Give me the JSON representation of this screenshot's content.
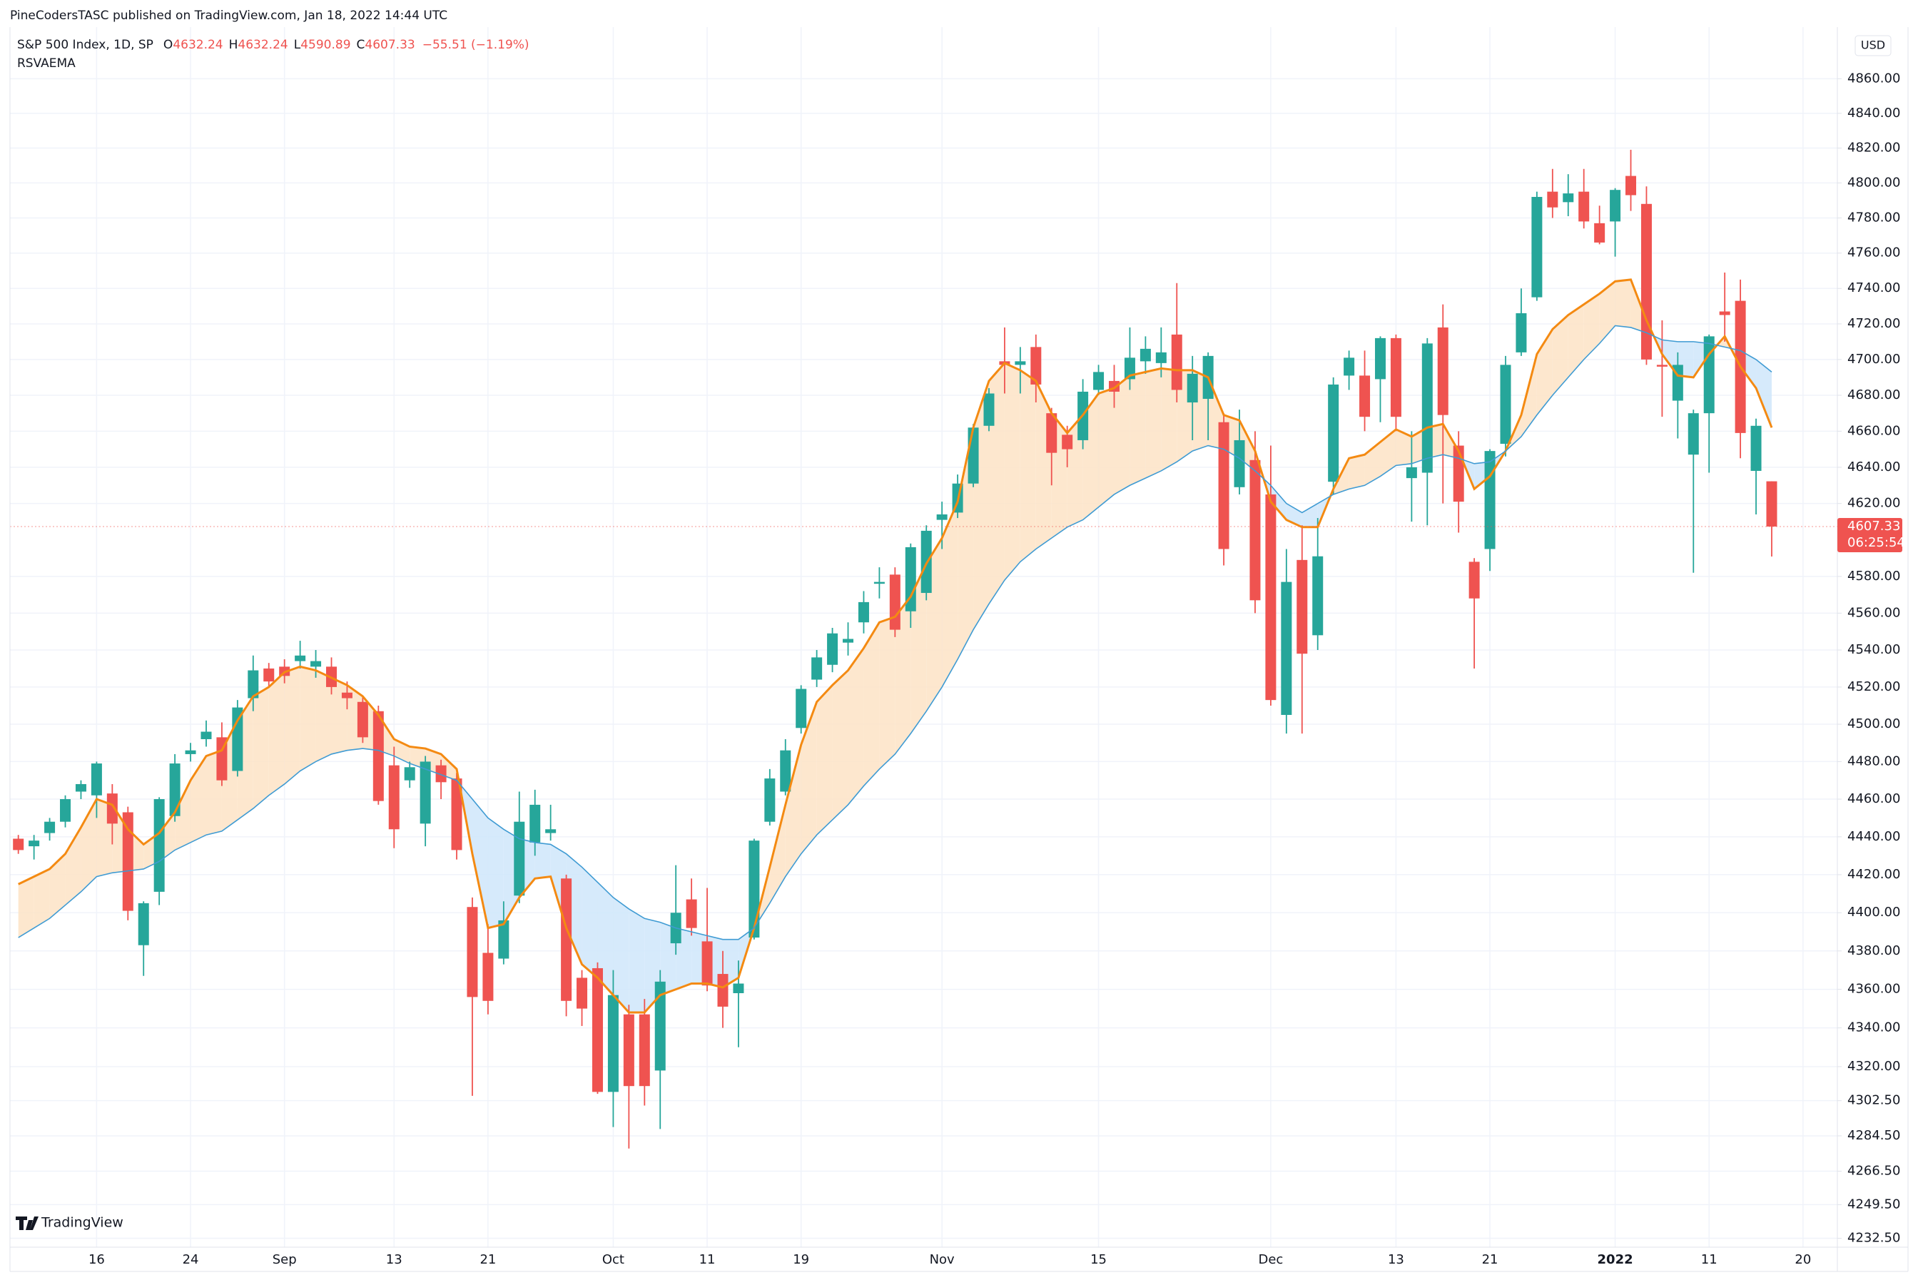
{
  "chart_data": {
    "type": "candlestick",
    "publisher": "PineCodersTASC published on TradingView.com, Jan 18, 2022 14:44 UTC",
    "symbol": "S&P 500 Index, 1D, SP",
    "ohlc_legend": [
      {
        "label": "O",
        "value": "4632.24"
      },
      {
        "label": "H",
        "value": "4632.24"
      },
      {
        "label": "L",
        "value": "4590.89"
      },
      {
        "label": "C",
        "value": "4607.33"
      }
    ],
    "change": "−55.51 (−1.19%)",
    "indicator": "RSVAEMA",
    "watermark": "TradingView",
    "currency": "USD",
    "last_price_label": "4607.33",
    "countdown": "06:25:54",
    "categories": [
      null,
      null,
      null,
      null,
      null,
      "16",
      null,
      null,
      null,
      null,
      null,
      "24",
      null,
      null,
      null,
      null,
      null,
      "Sep",
      null,
      null,
      null,
      null,
      null,
      null,
      "13",
      null,
      null,
      null,
      null,
      null,
      "21",
      null,
      null,
      null,
      null,
      null,
      null,
      null,
      "Oct",
      null,
      null,
      null,
      null,
      null,
      "11",
      null,
      null,
      null,
      null,
      null,
      "19",
      null,
      null,
      null,
      null,
      null,
      null,
      null,
      null,
      "Nov",
      null,
      null,
      null,
      null,
      null,
      null,
      null,
      null,
      null,
      "15",
      null,
      null,
      null,
      null,
      null,
      null,
      null,
      null,
      null,
      null,
      "Dec",
      null,
      null,
      null,
      null,
      null,
      null,
      null,
      "13",
      null,
      null,
      null,
      null,
      null,
      "21",
      null,
      null,
      null,
      null,
      null,
      null,
      null,
      "2022",
      null,
      null,
      null,
      null,
      null,
      "11",
      null,
      null,
      null,
      null,
      null,
      "20"
    ],
    "open": [
      4439,
      4435,
      4442,
      4448,
      4464,
      4462,
      4463,
      4453,
      4383,
      4411,
      4451,
      4484,
      4492,
      4493,
      4475,
      4514,
      4530,
      4531,
      4534,
      4531,
      4531,
      4517,
      4512,
      4507,
      4478,
      4470,
      4447,
      4478,
      4471,
      4403,
      4379,
      4376,
      4409,
      4437,
      4442,
      4418,
      4366,
      4371,
      4307,
      4347,
      4347,
      4318,
      4384,
      4407,
      4385,
      4368,
      4358,
      4387,
      4448,
      4464,
      4498,
      4524,
      4532,
      4544,
      4555,
      4576,
      4581,
      4561,
      4571,
      4611,
      4615,
      4631,
      4663,
      4699,
      4697,
      4707,
      4670,
      4658,
      4655,
      4683,
      4688,
      4689,
      4699,
      4698,
      4714,
      4676,
      4678,
      4665,
      4629,
      4644,
      4625,
      4505,
      4589,
      4548,
      4632,
      4691,
      4691,
      4689,
      4712,
      4634,
      4637,
      4718,
      4652,
      4588,
      4595,
      4653,
      4704,
      4735,
      4795,
      4789,
      4795,
      4777,
      4778,
      4804,
      4788,
      4697,
      4677,
      4647,
      4670,
      4727,
      4733,
      4638,
      4632.24,
      null,
      null
    ],
    "high": [
      4441,
      4441,
      4450,
      4462,
      4470,
      4480,
      4468,
      4456,
      4406,
      4461,
      4484,
      4490,
      4502,
      4501,
      4513,
      4537,
      4533,
      4535,
      4545,
      4540,
      4536,
      4523,
      4515,
      4510,
      4488,
      4480,
      4483,
      4481,
      4474,
      4408,
      4394,
      4406,
      4464,
      4465,
      4457,
      4420,
      4370,
      4374,
      4370,
      4352,
      4355,
      4370,
      4425,
      4418,
      4413,
      4380,
      4375,
      4439,
      4476,
      4492,
      4521,
      4540,
      4552,
      4555,
      4572,
      4585,
      4585,
      4598,
      4608,
      4621,
      4636,
      4664,
      4684,
      4718,
      4707,
      4714,
      4673,
      4663,
      4689,
      4697,
      4697,
      4718,
      4713,
      4718,
      4743,
      4702,
      4704,
      4670,
      4672,
      4660,
      4652,
      4595,
      4608,
      4612,
      4690,
      4705,
      4705,
      4713,
      4714,
      4660,
      4712,
      4731,
      4660,
      4590,
      4650,
      4702,
      4740,
      4795,
      4808,
      4805,
      4808,
      4787,
      4797,
      4819,
      4798,
      4722,
      4704,
      4672,
      4714,
      4749,
      4745,
      4667,
      4632.24,
      null,
      null
    ],
    "low": [
      4431,
      4428,
      4438,
      4445,
      4460,
      4450,
      4436,
      4396,
      4367,
      4404,
      4448,
      4480,
      4488,
      4467,
      4472,
      4507,
      4520,
      4522,
      4530,
      4525,
      4516,
      4508,
      4490,
      4457,
      4434,
      4466,
      4435,
      4460,
      4428,
      4305,
      4347,
      4373,
      4405,
      4430,
      4438,
      4346,
      4341,
      4306,
      4289,
      4278,
      4300,
      4288,
      4378,
      4388,
      4359,
      4340,
      4330,
      4386,
      4446,
      4462,
      4495,
      4520,
      4528,
      4537,
      4549,
      4568,
      4547,
      4552,
      4567,
      4595,
      4612,
      4629,
      4660,
      4681,
      4681,
      4676,
      4630,
      4640,
      4650,
      4680,
      4673,
      4683,
      4692,
      4690,
      4676,
      4655,
      4655,
      4586,
      4625,
      4560,
      4510,
      4495,
      4495,
      4540,
      4625,
      4683,
      4660,
      4665,
      4660,
      4610,
      4608,
      4620,
      4604,
      4530,
      4583,
      4646,
      4702,
      4733,
      4780,
      4781,
      4774,
      4765,
      4758,
      4784,
      4697,
      4668,
      4656,
      4582,
      4637,
      4710,
      4645,
      4614,
      4590.89,
      null,
      null
    ],
    "close": [
      4433,
      4438,
      4448,
      4460,
      4468,
      4479,
      4447,
      4401,
      4405,
      4460,
      4479,
      4486,
      4496,
      4470,
      4509,
      4529,
      4523,
      4526,
      4537,
      4534,
      4520,
      4514,
      4493,
      4459,
      4444,
      4477,
      4480,
      4469,
      4433,
      4356,
      4354,
      4396,
      4448,
      4457,
      4444,
      4354,
      4350,
      4307,
      4357,
      4310,
      4310,
      4364,
      4400,
      4392,
      4362,
      4351,
      4363,
      4438,
      4471,
      4486,
      4519,
      4536,
      4549,
      4546,
      4566,
      4577,
      4551,
      4596,
      4605,
      4614,
      4631,
      4662,
      4681,
      4697,
      4699,
      4686,
      4648,
      4650,
      4682,
      4693,
      4682,
      4701,
      4706,
      4704,
      4683,
      4692,
      4702,
      4595,
      4655,
      4567,
      4513,
      4577,
      4538,
      4591,
      4686,
      4701,
      4668,
      4712,
      4668,
      4640,
      4709,
      4669,
      4621,
      4568,
      4649,
      4697,
      4726,
      4792,
      4786,
      4794,
      4778,
      4766,
      4796,
      4793,
      4700,
      4696,
      4697,
      4670,
      4713,
      4725,
      4659,
      4663,
      4607.33,
      null,
      null
    ],
    "up_color": "#26a69a",
    "down_color": "#ef5350",
    "series": [
      {
        "color": "#f48a12",
        "values": [
          4415,
          4419,
          4423,
          4431,
          4445,
          4460,
          4457,
          4444,
          4436,
          4442,
          4453,
          4470,
          4483,
          4486,
          4502,
          4515,
          4520,
          4528,
          4531,
          4529,
          4525,
          4521,
          4515,
          4505,
          4492,
          4488,
          4487,
          4484,
          4476,
          4431,
          4392,
          4394,
          4408,
          4418,
          4419,
          4392,
          4373,
          4366,
          4357,
          4348,
          4348,
          4357,
          4360,
          4363,
          4363,
          4361,
          4366,
          4392,
          4424,
          4457,
          4489,
          4512,
          4521,
          4529,
          4541,
          4555,
          4558,
          4569,
          4587,
          4601,
          4621,
          4662,
          4688,
          4698,
          4694,
          4688,
          4670,
          4659,
          4669,
          4681,
          4684,
          4691,
          4693,
          4695,
          4694,
          4694,
          4690,
          4669,
          4666,
          4649,
          4621,
          4611,
          4607,
          4607,
          4628,
          4645,
          4647,
          4654,
          4661,
          4657,
          4662,
          4664,
          4649,
          4628,
          4635,
          4649,
          4669,
          4703,
          4717,
          4725,
          4731,
          4737,
          4744,
          4745,
          4722,
          4703,
          4691,
          4690,
          4703,
          4713,
          4696,
          4684,
          4662,
          null,
          null
        ]
      },
      {
        "color": "#3f9bd3",
        "values": [
          4387,
          4392,
          4397,
          4404,
          4411,
          4419,
          4421,
          4422,
          4423,
          4427,
          4433,
          4437,
          4441,
          4443,
          4449,
          4455,
          4462,
          4468,
          4475,
          4480,
          4484,
          4486,
          4487,
          4486,
          4483,
          4479,
          4476,
          4473,
          4470,
          4460,
          4450,
          4444,
          4439,
          4437,
          4436,
          4431,
          4424,
          4416,
          4408,
          4402,
          4397,
          4395,
          4392,
          4390,
          4388,
          4386,
          4386,
          4392,
          4405,
          4419,
          4431,
          4441,
          4449,
          4457,
          4467,
          4476,
          4484,
          4495,
          4507,
          4520,
          4535,
          4551,
          4565,
          4578,
          4588,
          4595,
          4601,
          4607,
          4611,
          4618,
          4625,
          4630,
          4634,
          4638,
          4643,
          4649,
          4652,
          4650,
          4645,
          4638,
          4630,
          4620,
          4615,
          4620,
          4625,
          4628,
          4630,
          4635,
          4641,
          4642,
          4645,
          4647,
          4645,
          4642,
          4643,
          4649,
          4657,
          4669,
          4680,
          4690,
          4700,
          4709,
          4719,
          4718,
          4715,
          4711,
          4710,
          4710,
          4709,
          4707,
          4705,
          4700,
          4693,
          null,
          null
        ]
      }
    ],
    "fill_above": "#fde3c6",
    "fill_below": "#cfe6fa",
    "log_scale": true,
    "grid": true,
    "ylim": [
      4228,
      4890
    ],
    "yticks": [
      {
        "value": 4860,
        "label": "4860.00"
      },
      {
        "value": 4840,
        "label": "4840.00"
      },
      {
        "value": 4820,
        "label": "4820.00"
      },
      {
        "value": 4800,
        "label": "4800.00"
      },
      {
        "value": 4780,
        "label": "4780.00"
      },
      {
        "value": 4760,
        "label": "4760.00"
      },
      {
        "value": 4740,
        "label": "4740.00"
      },
      {
        "value": 4720,
        "label": "4720.00"
      },
      {
        "value": 4700,
        "label": "4700.00"
      },
      {
        "value": 4680,
        "label": "4680.00"
      },
      {
        "value": 4660,
        "label": "4660.00"
      },
      {
        "value": 4640,
        "label": "4640.00"
      },
      {
        "value": 4620,
        "label": "4620.00"
      },
      {
        "value": 4580,
        "label": "4580.00"
      },
      {
        "value": 4560,
        "label": "4560.00"
      },
      {
        "value": 4540,
        "label": "4540.00"
      },
      {
        "value": 4520,
        "label": "4520.00"
      },
      {
        "value": 4500,
        "label": "4500.00"
      },
      {
        "value": 4480,
        "label": "4480.00"
      },
      {
        "value": 4460,
        "label": "4460.00"
      },
      {
        "value": 4440,
        "label": "4440.00"
      },
      {
        "value": 4420,
        "label": "4420.00"
      },
      {
        "value": 4400,
        "label": "4400.00"
      },
      {
        "value": 4380,
        "label": "4380.00"
      },
      {
        "value": 4360,
        "label": "4360.00"
      },
      {
        "value": 4340,
        "label": "4340.00"
      },
      {
        "value": 4320,
        "label": "4320.00"
      },
      {
        "value": 4302.5,
        "label": "4302.50"
      },
      {
        "value": 4284.5,
        "label": "4284.50"
      },
      {
        "value": 4266.5,
        "label": "4266.50"
      },
      {
        "value": 4249.5,
        "label": "4249.50"
      },
      {
        "value": 4232.5,
        "label": "4232.50"
      }
    ]
  }
}
